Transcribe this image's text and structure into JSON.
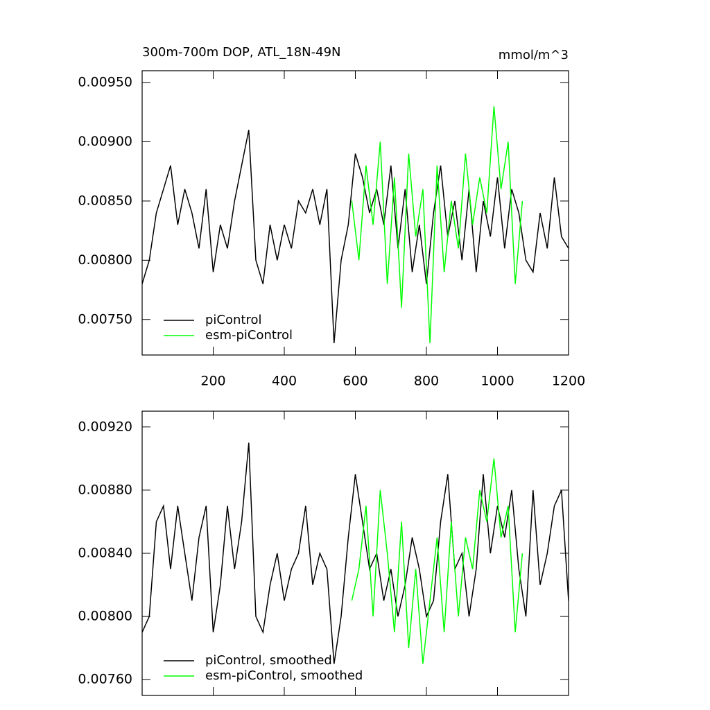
{
  "chart_data": [
    {
      "type": "line",
      "title": "300m-700m DOP, ATL_18N-49N",
      "subtitle": "mmol/m^3",
      "xlim": [
        0,
        1200
      ],
      "xticks": [
        200,
        400,
        600,
        800,
        1000,
        1200
      ],
      "ylim": [
        0.0072,
        0.0096
      ],
      "yticks": [
        {
          "value": 0.0075,
          "label": "0.00750"
        },
        {
          "value": 0.008,
          "label": "0.00800"
        },
        {
          "value": 0.0085,
          "label": "0.00850"
        },
        {
          "value": 0.009,
          "label": "0.00900"
        },
        {
          "value": 0.0095,
          "label": "0.00950"
        }
      ],
      "legend": "lower left",
      "series": [
        {
          "name": "piControl",
          "color": "#000000",
          "x": [
            0,
            20,
            40,
            60,
            80,
            100,
            120,
            140,
            160,
            180,
            200,
            220,
            240,
            260,
            280,
            300,
            320,
            340,
            360,
            380,
            400,
            420,
            440,
            460,
            480,
            500,
            520,
            540,
            560,
            580,
            600,
            620,
            640,
            660,
            680,
            700,
            720,
            740,
            760,
            780,
            800,
            820,
            840,
            860,
            880,
            900,
            920,
            940,
            960,
            980,
            1000,
            1020,
            1040,
            1060,
            1080,
            1100,
            1120,
            1140,
            1160,
            1180,
            1200
          ],
          "values": [
            0.0078,
            0.008,
            0.0084,
            0.0086,
            0.0088,
            0.0083,
            0.0086,
            0.0084,
            0.0081,
            0.0086,
            0.0079,
            0.0083,
            0.0081,
            0.0085,
            0.0088,
            0.0091,
            0.008,
            0.0078,
            0.0083,
            0.008,
            0.0083,
            0.0081,
            0.0085,
            0.0084,
            0.0086,
            0.0083,
            0.0086,
            0.0073,
            0.008,
            0.0083,
            0.0089,
            0.0087,
            0.0084,
            0.0086,
            0.0083,
            0.0088,
            0.0081,
            0.0086,
            0.0079,
            0.0083,
            0.0078,
            0.0084,
            0.0088,
            0.0082,
            0.0085,
            0.008,
            0.0086,
            0.0079,
            0.0085,
            0.0082,
            0.0087,
            0.0081,
            0.0086,
            0.0084,
            0.008,
            0.0079,
            0.0084,
            0.0081,
            0.0087,
            0.0082,
            0.0081
          ]
        },
        {
          "name": "esm-piControl",
          "color": "#00ff00",
          "x": [
            590,
            610,
            630,
            650,
            670,
            690,
            710,
            730,
            750,
            770,
            790,
            810,
            830,
            850,
            870,
            890,
            910,
            930,
            950,
            970,
            990,
            1010,
            1030,
            1050,
            1070
          ],
          "values": [
            0.0085,
            0.008,
            0.0088,
            0.0083,
            0.009,
            0.0078,
            0.0087,
            0.0076,
            0.0089,
            0.0082,
            0.0086,
            0.0073,
            0.0088,
            0.0079,
            0.0085,
            0.0081,
            0.0089,
            0.0083,
            0.0087,
            0.0084,
            0.0093,
            0.0086,
            0.009,
            0.0078,
            0.0085
          ]
        }
      ]
    },
    {
      "type": "line",
      "xlim": [
        0,
        1200
      ],
      "xticks": [
        200,
        400,
        600,
        800,
        1000,
        1200
      ],
      "ylim": [
        0.0075,
        0.0093
      ],
      "yticks": [
        {
          "value": 0.0076,
          "label": "0.00760"
        },
        {
          "value": 0.008,
          "label": "0.00800"
        },
        {
          "value": 0.0084,
          "label": "0.00840"
        },
        {
          "value": 0.0088,
          "label": "0.00880"
        },
        {
          "value": 0.0092,
          "label": "0.00920"
        }
      ],
      "legend": "lower left",
      "series": [
        {
          "name": "piControl, smoothed",
          "color": "#000000",
          "x": [
            0,
            20,
            40,
            60,
            80,
            100,
            120,
            140,
            160,
            180,
            200,
            220,
            240,
            260,
            280,
            300,
            320,
            340,
            360,
            380,
            400,
            420,
            440,
            460,
            480,
            500,
            520,
            540,
            560,
            580,
            600,
            620,
            640,
            660,
            680,
            700,
            720,
            740,
            760,
            780,
            800,
            820,
            840,
            860,
            880,
            900,
            920,
            940,
            960,
            980,
            1000,
            1020,
            1040,
            1060,
            1080,
            1100,
            1120,
            1140,
            1160,
            1180,
            1200
          ],
          "values": [
            0.0079,
            0.008,
            0.0086,
            0.0087,
            0.0083,
            0.0087,
            0.0084,
            0.0081,
            0.0085,
            0.0087,
            0.0079,
            0.0082,
            0.0087,
            0.0083,
            0.0086,
            0.0091,
            0.008,
            0.0079,
            0.0082,
            0.0084,
            0.0081,
            0.0083,
            0.0084,
            0.0087,
            0.0082,
            0.0084,
            0.0083,
            0.0077,
            0.008,
            0.0085,
            0.0089,
            0.0086,
            0.0083,
            0.0084,
            0.0081,
            0.0083,
            0.008,
            0.0082,
            0.0085,
            0.0083,
            0.008,
            0.0081,
            0.0086,
            0.0089,
            0.0083,
            0.0084,
            0.008,
            0.0083,
            0.0089,
            0.0084,
            0.0087,
            0.0085,
            0.0088,
            0.0083,
            0.008,
            0.0088,
            0.0082,
            0.0084,
            0.0087,
            0.0088,
            0.0081
          ]
        },
        {
          "name": "esm-piControl, smoothed",
          "color": "#00ff00",
          "x": [
            590,
            610,
            630,
            650,
            670,
            690,
            710,
            730,
            750,
            770,
            790,
            810,
            830,
            850,
            870,
            890,
            910,
            930,
            950,
            970,
            990,
            1010,
            1030,
            1050,
            1070
          ],
          "values": [
            0.0081,
            0.0083,
            0.0087,
            0.008,
            0.0088,
            0.0084,
            0.0079,
            0.0086,
            0.0078,
            0.0083,
            0.0077,
            0.0081,
            0.0085,
            0.0079,
            0.0086,
            0.008,
            0.0085,
            0.0083,
            0.0088,
            0.0086,
            0.009,
            0.0085,
            0.0087,
            0.0079,
            0.0084
          ]
        }
      ]
    }
  ]
}
